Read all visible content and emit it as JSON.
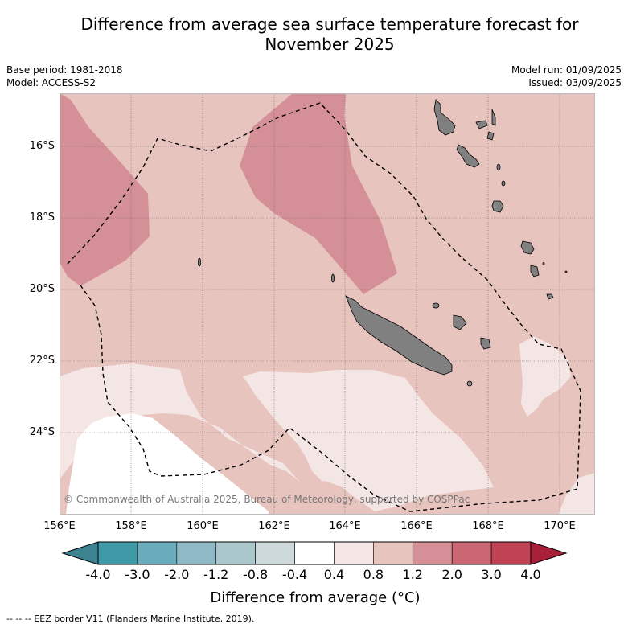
{
  "title": "Difference from average sea surface temperature forecast for November 2025",
  "meta": {
    "base_period": "Base period: 1981-2018",
    "model": "Model: ACCESS-S2",
    "model_run": "Model run: 01/09/2025",
    "issued": "Issued: 03/09/2025"
  },
  "lat_labels": [
    "16°S",
    "18°S",
    "20°S",
    "22°S",
    "24°S"
  ],
  "lon_labels": [
    "156°E",
    "158°E",
    "160°E",
    "162°E",
    "164°E",
    "166°E",
    "168°E",
    "170°E"
  ],
  "copyright": "© Commonwealth of Australia 2025, Bureau of Meteorology, supported by COSPPac",
  "colorbar": {
    "label": "Difference from average (°C)",
    "ticks": [
      "-4.0",
      "-3.0",
      "-2.0",
      "-1.2",
      "-0.8",
      "-0.4",
      "0.4",
      "0.8",
      "1.2",
      "2.0",
      "3.0",
      "4.0"
    ],
    "colors": [
      "#3f9aa8",
      "#6aacbb",
      "#8fbac5",
      "#aac8cc",
      "#cdd9da",
      "#ffffff",
      "#f4e6e4",
      "#e8c4bf",
      "#d58f97",
      "#cb6772",
      "#bf4355"
    ],
    "under_color": "#3c8290",
    "over_color": "#a8203a"
  },
  "legend_text": "--  --  -- EEZ border V11 (Flanders Marine Institute, 2019).",
  "colors": {
    "land": "#808080",
    "anomaly_0_4": "#f4e6e4",
    "anomaly_0_8": "#e8c4bf",
    "anomaly_1_2": "#d58f97"
  }
}
